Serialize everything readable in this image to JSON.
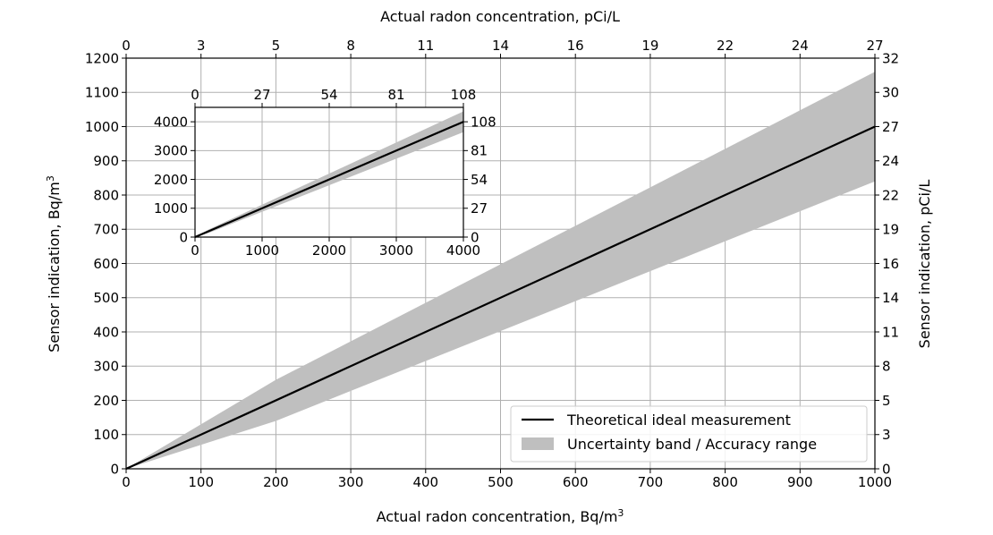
{
  "chart_data": {
    "type": "line",
    "main": {
      "xlabel": "Actual radon concentration, Bq/m",
      "xlabel_sup": "3",
      "ylabel": "Sensor indication, Bq/m",
      "ylabel_sup": "3",
      "x2label": "Actual radon concentration, pCi/L",
      "y2label": "Sensor indication, pCi/L",
      "xlim": [
        0,
        1000
      ],
      "ylim": [
        0,
        1200
      ],
      "x_ticks": [
        0,
        100,
        200,
        300,
        400,
        500,
        600,
        700,
        800,
        900,
        1000
      ],
      "y_ticks": [
        0,
        100,
        200,
        300,
        400,
        500,
        600,
        700,
        800,
        900,
        1000,
        1100,
        1200
      ],
      "x2_ticks": [
        0,
        3,
        5,
        8,
        11,
        14,
        16,
        19,
        22,
        24,
        27
      ],
      "y2_ticks": [
        0,
        3,
        5,
        8,
        11,
        14,
        16,
        19,
        22,
        24,
        27,
        30,
        32
      ],
      "grid": true,
      "series": [
        {
          "name": "Theoretical ideal measurement",
          "kind": "line",
          "color": "#000000",
          "x": [
            0,
            1000
          ],
          "y": [
            0,
            1000
          ]
        },
        {
          "name": "Uncertainty band / Accuracy range",
          "kind": "band",
          "color": "#bfbfbf",
          "x": [
            0,
            200,
            1000
          ],
          "upper": [
            0,
            260,
            1160
          ],
          "lower": [
            0,
            140,
            840
          ]
        }
      ],
      "legend_position": "lower-right"
    },
    "inset": {
      "xlim": [
        0,
        4000
      ],
      "ylim": [
        0,
        4500
      ],
      "x_ticks": [
        0,
        1000,
        2000,
        3000,
        4000
      ],
      "y_ticks": [
        0,
        1000,
        2000,
        3000,
        4000
      ],
      "x2_ticks": [
        0,
        27,
        54,
        81,
        108
      ],
      "y2_ticks": [
        0,
        27,
        54,
        81,
        108
      ],
      "grid": true,
      "series": [
        {
          "name": "Theoretical ideal measurement",
          "kind": "line",
          "color": "#000000",
          "x": [
            0,
            4000
          ],
          "y": [
            0,
            4000
          ]
        },
        {
          "name": "Uncertainty band / Accuracy range",
          "kind": "band",
          "color": "#bfbfbf",
          "x": [
            0,
            200,
            4000
          ],
          "upper": [
            0,
            260,
            4360
          ],
          "lower": [
            0,
            140,
            3640
          ]
        }
      ]
    }
  }
}
